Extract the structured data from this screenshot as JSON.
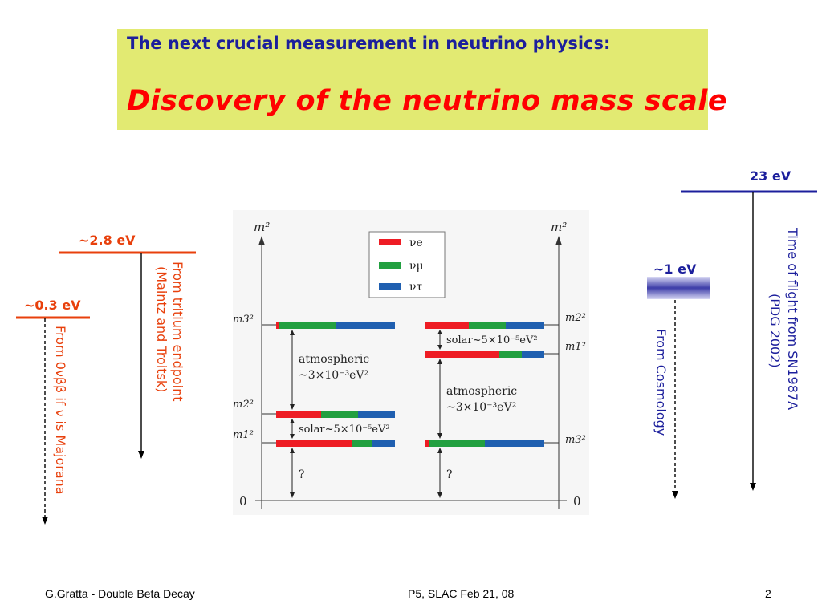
{
  "slide": {
    "title": "The next crucial measurement in neutrino physics:",
    "subtitle": "Discovery of the neutrino mass scale",
    "colors": {
      "title_bg": "#e2ea72",
      "title_text": "#1c1f9c",
      "subtitle_text": "#ff0000",
      "red_label": "#e8400c",
      "blue_label": "#1c1f9c"
    }
  },
  "limits": {
    "onbb": {
      "value": "~0.3 eV",
      "text": "From 0νββ if ν is Majorana"
    },
    "tritium": {
      "value": "~2.8 eV",
      "text_line1": "From tritium endpoint",
      "text_line2": "(Maintz and Troitsk)"
    },
    "cosmology": {
      "value": "~1 eV",
      "text": "From Cosmology"
    },
    "sn1987a": {
      "value": "23 eV",
      "text_line1": "Time of flight from SN1987A",
      "text_line2": "(PDG 2002)"
    }
  },
  "hierarchy": {
    "axis_label": "m²",
    "zero_label": "0",
    "legend": [
      {
        "label": "νe",
        "color": "#ee1c24"
      },
      {
        "label": "νμ",
        "color": "#22a040"
      },
      {
        "label": "ντ",
        "color": "#1f5fb0"
      }
    ],
    "normal": {
      "levels": [
        "m3²",
        "m2²",
        "m1²"
      ],
      "atmospheric_l1": "atmospheric",
      "atmospheric_l2": "~3×10⁻³eV²",
      "solar": "solar~5×10⁻⁵eV²",
      "unknown": "?"
    },
    "inverted": {
      "levels": [
        "m2²",
        "m1²",
        "m3²"
      ],
      "atmospheric_l1": "atmospheric",
      "atmospheric_l2": "~3×10⁻³eV²",
      "solar": "solar~5×10⁻⁵eV²",
      "unknown": "?"
    }
  },
  "footer": {
    "left": "G.Gratta - Double Beta Decay",
    "center": "P5, SLAC Feb 21, 08",
    "page": "2"
  }
}
